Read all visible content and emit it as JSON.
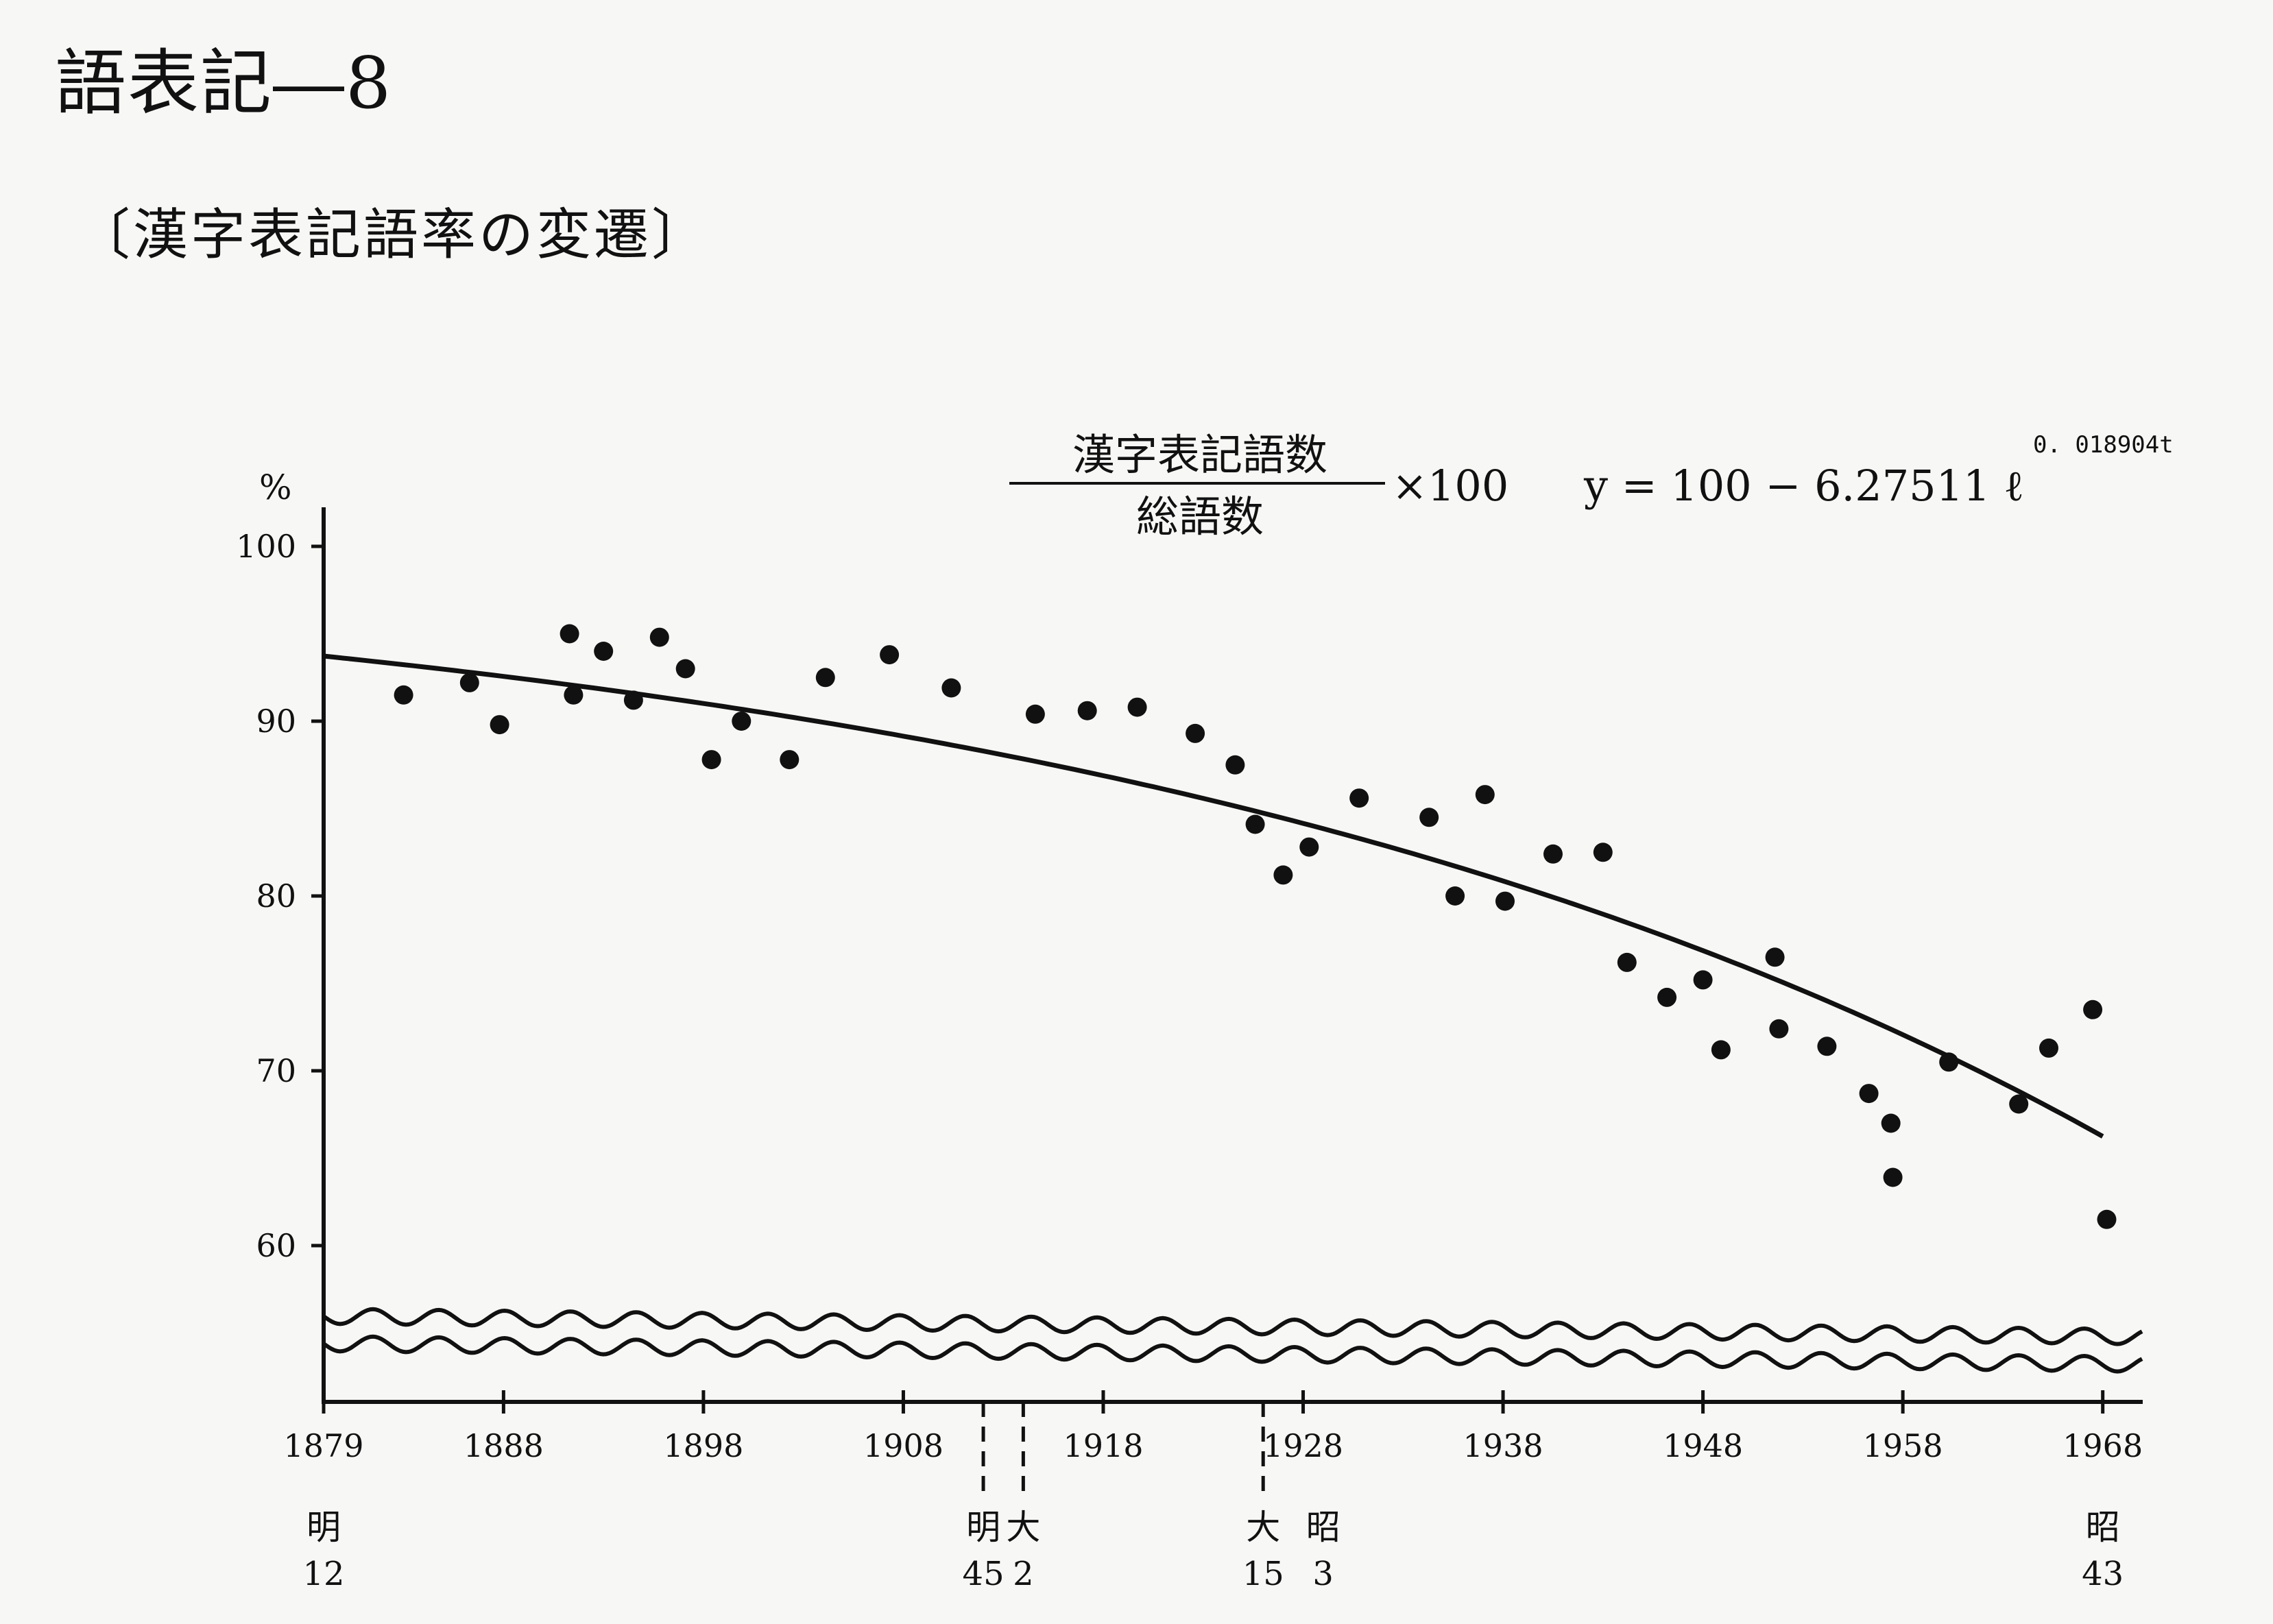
{
  "page_title": "語表記―8",
  "subtitle": "〔漢字表記語率の変遷〕",
  "chart_data": {
    "type": "scatter",
    "title": "",
    "formula": {
      "numerator": "漢字表記語数",
      "denominator": "総語数",
      "multiplier": "×100",
      "fit": "y = 100 − 6.27511 ℓ",
      "exponent": "0. 018904t"
    },
    "xlabel": "",
    "ylabel": "%",
    "xlim": [
      1879,
      1970
    ],
    "ylim": [
      60,
      100
    ],
    "y_axis_break": true,
    "x_ticks": [
      1879,
      1888,
      1898,
      1908,
      1918,
      1928,
      1938,
      1948,
      1958,
      1968
    ],
    "y_ticks": [
      60,
      70,
      80,
      90,
      100
    ],
    "era_markers": [
      {
        "x": 1879,
        "era": "明",
        "year": "12",
        "dashed": false
      },
      {
        "x": 1912,
        "era": "明",
        "year": "45",
        "dashed": true
      },
      {
        "x": 1914,
        "era": "大",
        "year": "2",
        "dashed": true
      },
      {
        "x": 1926,
        "era": "大",
        "year": "15",
        "dashed": true
      },
      {
        "x": 1929,
        "era": "昭",
        "year": "3",
        "dashed": false
      },
      {
        "x": 1968,
        "era": "昭",
        "year": "43",
        "dashed": false
      }
    ],
    "series": [
      {
        "points": [
          [
            1883,
            91.5
          ],
          [
            1886.3,
            92.2
          ],
          [
            1887.8,
            89.8
          ],
          [
            1891.3,
            95.0
          ],
          [
            1891.5,
            91.5
          ],
          [
            1893,
            94.0
          ],
          [
            1894.5,
            91.2
          ],
          [
            1895.8,
            94.8
          ],
          [
            1897.1,
            93.0
          ],
          [
            1898.4,
            87.8
          ],
          [
            1899.9,
            90.0
          ],
          [
            1902.3,
            87.8
          ],
          [
            1904.1,
            92.5
          ],
          [
            1907.3,
            93.8
          ],
          [
            1910.4,
            91.9
          ],
          [
            1914.6,
            90.4
          ],
          [
            1917.2,
            90.6
          ],
          [
            1919.7,
            90.8
          ],
          [
            1922.6,
            89.3
          ],
          [
            1924.6,
            87.5
          ],
          [
            1925.6,
            84.1
          ],
          [
            1927,
            81.2
          ],
          [
            1928.3,
            82.8
          ],
          [
            1930.8,
            85.6
          ],
          [
            1934.3,
            84.5
          ],
          [
            1935.6,
            80.0
          ],
          [
            1937.1,
            85.8
          ],
          [
            1938.1,
            79.7
          ],
          [
            1940.5,
            82.4
          ],
          [
            1943,
            82.5
          ],
          [
            1944.2,
            76.2
          ],
          [
            1946.2,
            74.2
          ],
          [
            1948,
            75.2
          ],
          [
            1948.9,
            71.2
          ],
          [
            1951.6,
            76.5
          ],
          [
            1951.8,
            72.4
          ],
          [
            1954.2,
            71.4
          ],
          [
            1956.3,
            68.7
          ],
          [
            1957.4,
            67.0
          ],
          [
            1957.5,
            63.9
          ],
          [
            1960.3,
            70.5
          ],
          [
            1963.8,
            68.1
          ],
          [
            1965.3,
            71.3
          ],
          [
            1967.5,
            73.5
          ],
          [
            1968.2,
            61.5
          ]
        ]
      }
    ]
  }
}
